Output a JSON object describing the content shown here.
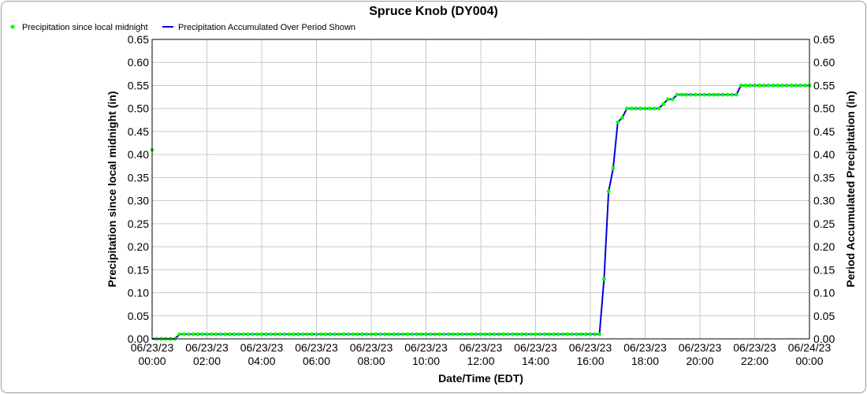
{
  "chart_data": {
    "type": "line",
    "title": "Spruce Knob (DY004)",
    "xlabel": "Date/Time (EDT)",
    "ylabel_left": "Precipitation since local midnight (in)",
    "ylabel_right": "Period Accumulated Precipitation (in)",
    "ylim": [
      0,
      0.65
    ],
    "y_ticks": [
      "0.00",
      "0.05",
      "0.10",
      "0.15",
      "0.20",
      "0.25",
      "0.30",
      "0.35",
      "0.40",
      "0.45",
      "0.50",
      "0.55",
      "0.60",
      "0.65"
    ],
    "x_range": [
      "06/23/23 00:00",
      "06/24/23 00:00"
    ],
    "x_ticks": [
      {
        "date": "06/23/23",
        "time": "00:00"
      },
      {
        "date": "06/23/23",
        "time": "02:00"
      },
      {
        "date": "06/23/23",
        "time": "04:00"
      },
      {
        "date": "06/23/23",
        "time": "06:00"
      },
      {
        "date": "06/23/23",
        "time": "08:00"
      },
      {
        "date": "06/23/23",
        "time": "10:00"
      },
      {
        "date": "06/23/23",
        "time": "12:00"
      },
      {
        "date": "06/23/23",
        "time": "14:00"
      },
      {
        "date": "06/23/23",
        "time": "16:00"
      },
      {
        "date": "06/23/23",
        "time": "18:00"
      },
      {
        "date": "06/23/23",
        "time": "20:00"
      },
      {
        "date": "06/23/23",
        "time": "22:00"
      },
      {
        "date": "06/24/23",
        "time": "00:00"
      }
    ],
    "grid": true,
    "legend_position": "top-left",
    "series": [
      {
        "name": "Precipitation since local midnight",
        "style": "points",
        "color": "#00ff00",
        "points": [
          [
            "06/23/23 00:00",
            0.41
          ],
          [
            "06/23/23 00:10",
            0.0
          ],
          [
            "06/23/23 00:20",
            0.0
          ],
          [
            "06/23/23 00:30",
            0.0
          ],
          [
            "06/23/23 00:40",
            0.0
          ],
          [
            "06/23/23 00:50",
            0.0
          ],
          [
            "06/23/23 01:00",
            0.01
          ],
          [
            "06/23/23 01:10",
            0.01
          ],
          [
            "06/23/23 01:20",
            0.01
          ],
          [
            "06/23/23 01:30",
            0.01
          ],
          [
            "06/23/23 01:40",
            0.01
          ],
          [
            "06/23/23 01:50",
            0.01
          ],
          [
            "06/23/23 02:00",
            0.01
          ],
          [
            "06/23/23 02:10",
            0.01
          ],
          [
            "06/23/23 02:20",
            0.01
          ],
          [
            "06/23/23 02:30",
            0.01
          ],
          [
            "06/23/23 02:40",
            0.01
          ],
          [
            "06/23/23 02:50",
            0.01
          ],
          [
            "06/23/23 03:00",
            0.01
          ],
          [
            "06/23/23 03:10",
            0.01
          ],
          [
            "06/23/23 03:20",
            0.01
          ],
          [
            "06/23/23 03:30",
            0.01
          ],
          [
            "06/23/23 03:40",
            0.01
          ],
          [
            "06/23/23 03:50",
            0.01
          ],
          [
            "06/23/23 04:00",
            0.01
          ],
          [
            "06/23/23 04:10",
            0.01
          ],
          [
            "06/23/23 04:20",
            0.01
          ],
          [
            "06/23/23 04:30",
            0.01
          ],
          [
            "06/23/23 04:40",
            0.01
          ],
          [
            "06/23/23 04:50",
            0.01
          ],
          [
            "06/23/23 05:00",
            0.01
          ],
          [
            "06/23/23 05:10",
            0.01
          ],
          [
            "06/23/23 05:20",
            0.01
          ],
          [
            "06/23/23 05:30",
            0.01
          ],
          [
            "06/23/23 05:40",
            0.01
          ],
          [
            "06/23/23 05:50",
            0.01
          ],
          [
            "06/23/23 06:00",
            0.01
          ],
          [
            "06/23/23 06:10",
            0.01
          ],
          [
            "06/23/23 06:20",
            0.01
          ],
          [
            "06/23/23 06:30",
            0.01
          ],
          [
            "06/23/23 06:40",
            0.01
          ],
          [
            "06/23/23 06:50",
            0.01
          ],
          [
            "06/23/23 07:00",
            0.01
          ],
          [
            "06/23/23 07:10",
            0.01
          ],
          [
            "06/23/23 07:20",
            0.01
          ],
          [
            "06/23/23 07:30",
            0.01
          ],
          [
            "06/23/23 07:40",
            0.01
          ],
          [
            "06/23/23 07:50",
            0.01
          ],
          [
            "06/23/23 08:00",
            0.01
          ],
          [
            "06/23/23 08:10",
            0.01
          ],
          [
            "06/23/23 08:20",
            0.01
          ],
          [
            "06/23/23 08:30",
            0.01
          ],
          [
            "06/23/23 08:40",
            0.01
          ],
          [
            "06/23/23 08:50",
            0.01
          ],
          [
            "06/23/23 09:00",
            0.01
          ],
          [
            "06/23/23 09:10",
            0.01
          ],
          [
            "06/23/23 09:20",
            0.01
          ],
          [
            "06/23/23 09:30",
            0.01
          ],
          [
            "06/23/23 09:40",
            0.01
          ],
          [
            "06/23/23 09:50",
            0.01
          ],
          [
            "06/23/23 10:00",
            0.01
          ],
          [
            "06/23/23 10:10",
            0.01
          ],
          [
            "06/23/23 10:20",
            0.01
          ],
          [
            "06/23/23 10:30",
            0.01
          ],
          [
            "06/23/23 10:40",
            0.01
          ],
          [
            "06/23/23 10:50",
            0.01
          ],
          [
            "06/23/23 11:00",
            0.01
          ],
          [
            "06/23/23 11:10",
            0.01
          ],
          [
            "06/23/23 11:20",
            0.01
          ],
          [
            "06/23/23 11:30",
            0.01
          ],
          [
            "06/23/23 11:40",
            0.01
          ],
          [
            "06/23/23 11:50",
            0.01
          ],
          [
            "06/23/23 12:00",
            0.01
          ],
          [
            "06/23/23 12:10",
            0.01
          ],
          [
            "06/23/23 12:20",
            0.01
          ],
          [
            "06/23/23 12:30",
            0.01
          ],
          [
            "06/23/23 12:40",
            0.01
          ],
          [
            "06/23/23 12:50",
            0.01
          ],
          [
            "06/23/23 13:00",
            0.01
          ],
          [
            "06/23/23 13:10",
            0.01
          ],
          [
            "06/23/23 13:20",
            0.01
          ],
          [
            "06/23/23 13:30",
            0.01
          ],
          [
            "06/23/23 13:40",
            0.01
          ],
          [
            "06/23/23 13:50",
            0.01
          ],
          [
            "06/23/23 14:00",
            0.01
          ],
          [
            "06/23/23 14:10",
            0.01
          ],
          [
            "06/23/23 14:20",
            0.01
          ],
          [
            "06/23/23 14:30",
            0.01
          ],
          [
            "06/23/23 14:40",
            0.01
          ],
          [
            "06/23/23 14:50",
            0.01
          ],
          [
            "06/23/23 15:00",
            0.01
          ],
          [
            "06/23/23 15:10",
            0.01
          ],
          [
            "06/23/23 15:20",
            0.01
          ],
          [
            "06/23/23 15:30",
            0.01
          ],
          [
            "06/23/23 15:40",
            0.01
          ],
          [
            "06/23/23 15:50",
            0.01
          ],
          [
            "06/23/23 16:00",
            0.01
          ],
          [
            "06/23/23 16:10",
            0.01
          ],
          [
            "06/23/23 16:20",
            0.01
          ],
          [
            "06/23/23 16:30",
            0.13
          ],
          [
            "06/23/23 16:40",
            0.32
          ],
          [
            "06/23/23 16:50",
            0.37
          ],
          [
            "06/23/23 17:00",
            0.47
          ],
          [
            "06/23/23 17:10",
            0.48
          ],
          [
            "06/23/23 17:20",
            0.5
          ],
          [
            "06/23/23 17:30",
            0.5
          ],
          [
            "06/23/23 17:40",
            0.5
          ],
          [
            "06/23/23 17:50",
            0.5
          ],
          [
            "06/23/23 18:00",
            0.5
          ],
          [
            "06/23/23 18:10",
            0.5
          ],
          [
            "06/23/23 18:20",
            0.5
          ],
          [
            "06/23/23 18:30",
            0.5
          ],
          [
            "06/23/23 18:40",
            0.51
          ],
          [
            "06/23/23 18:50",
            0.52
          ],
          [
            "06/23/23 19:00",
            0.52
          ],
          [
            "06/23/23 19:10",
            0.53
          ],
          [
            "06/23/23 19:20",
            0.53
          ],
          [
            "06/23/23 19:30",
            0.53
          ],
          [
            "06/23/23 19:40",
            0.53
          ],
          [
            "06/23/23 19:50",
            0.53
          ],
          [
            "06/23/23 20:00",
            0.53
          ],
          [
            "06/23/23 20:10",
            0.53
          ],
          [
            "06/23/23 20:20",
            0.53
          ],
          [
            "06/23/23 20:30",
            0.53
          ],
          [
            "06/23/23 20:40",
            0.53
          ],
          [
            "06/23/23 20:50",
            0.53
          ],
          [
            "06/23/23 21:00",
            0.53
          ],
          [
            "06/23/23 21:10",
            0.53
          ],
          [
            "06/23/23 21:20",
            0.53
          ],
          [
            "06/23/23 21:30",
            0.55
          ],
          [
            "06/23/23 21:40",
            0.55
          ],
          [
            "06/23/23 21:50",
            0.55
          ],
          [
            "06/23/23 22:00",
            0.55
          ],
          [
            "06/23/23 22:10",
            0.55
          ],
          [
            "06/23/23 22:20",
            0.55
          ],
          [
            "06/23/23 22:30",
            0.55
          ],
          [
            "06/23/23 22:40",
            0.55
          ],
          [
            "06/23/23 22:50",
            0.55
          ],
          [
            "06/23/23 23:00",
            0.55
          ],
          [
            "06/23/23 23:10",
            0.55
          ],
          [
            "06/23/23 23:20",
            0.55
          ],
          [
            "06/23/23 23:30",
            0.55
          ],
          [
            "06/23/23 23:40",
            0.55
          ],
          [
            "06/23/23 23:50",
            0.55
          ],
          [
            "06/24/23 00:00",
            0.55
          ]
        ]
      },
      {
        "name": "Precipitation Accumulated Over Period Shown",
        "style": "line",
        "color": "#0000dd",
        "points": [
          [
            "06/23/23 00:00",
            0.0
          ],
          [
            "06/23/23 00:50",
            0.0
          ],
          [
            "06/23/23 01:00",
            0.01
          ],
          [
            "06/23/23 16:20",
            0.01
          ],
          [
            "06/23/23 16:30",
            0.13
          ],
          [
            "06/23/23 16:40",
            0.32
          ],
          [
            "06/23/23 16:50",
            0.37
          ],
          [
            "06/23/23 17:00",
            0.47
          ],
          [
            "06/23/23 17:10",
            0.48
          ],
          [
            "06/23/23 17:20",
            0.5
          ],
          [
            "06/23/23 18:30",
            0.5
          ],
          [
            "06/23/23 18:40",
            0.51
          ],
          [
            "06/23/23 18:50",
            0.52
          ],
          [
            "06/23/23 19:00",
            0.52
          ],
          [
            "06/23/23 19:10",
            0.53
          ],
          [
            "06/23/23 21:20",
            0.53
          ],
          [
            "06/23/23 21:30",
            0.55
          ],
          [
            "06/24/23 00:00",
            0.55
          ]
        ]
      }
    ]
  }
}
